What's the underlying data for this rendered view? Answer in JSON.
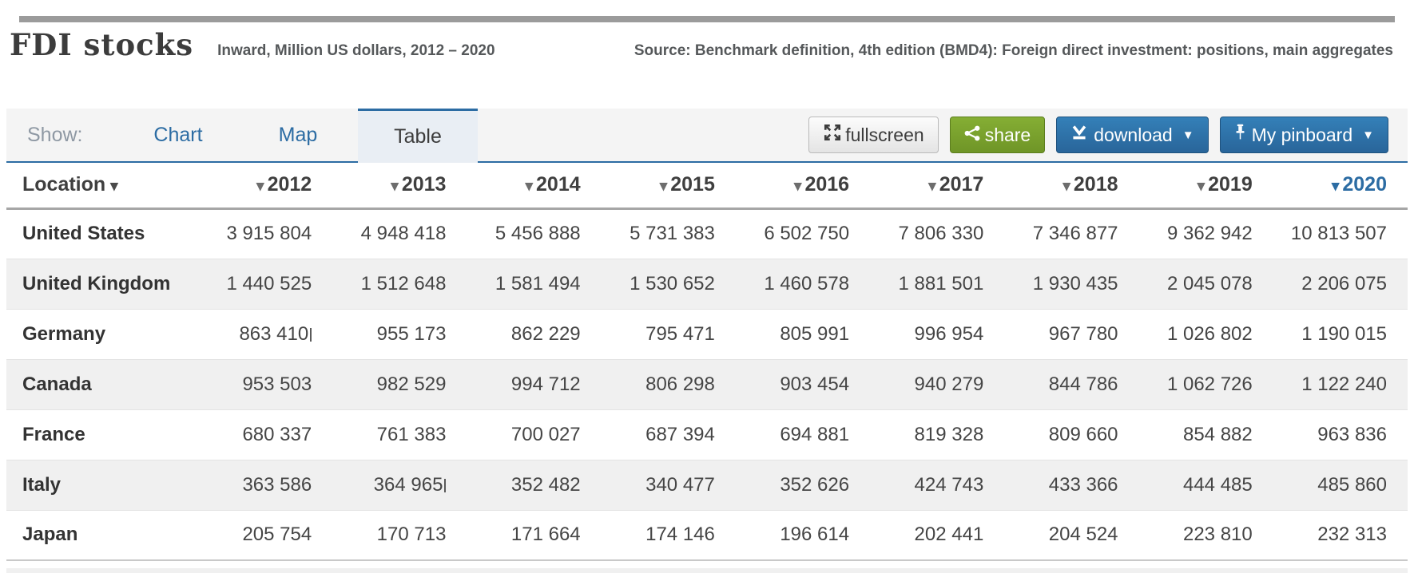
{
  "page": {
    "title": "FDI stocks",
    "subtitle": "Inward, Million US dollars, 2012 – 2020",
    "source": "Source: Benchmark definition, 4th edition (BMD4): Foreign direct investment: positions, main aggregates"
  },
  "controls": {
    "show_label": "Show:",
    "tabs": [
      {
        "id": "chart",
        "label": "Chart",
        "active": false
      },
      {
        "id": "map",
        "label": "Map",
        "active": false
      },
      {
        "id": "table",
        "label": "Table",
        "active": true
      }
    ],
    "buttons": {
      "fullscreen": "fullscreen",
      "share": "share",
      "download": "download",
      "pinboard": "My pinboard",
      "dropdown_arrow": "▼"
    },
    "icons": {
      "fullscreen": "expand-arrows-icon",
      "share": "share-nodes-icon",
      "download": "download-arrow-icon",
      "pinboard": "pushpin-icon"
    }
  },
  "colors": {
    "accent_blue": "#2c6ca3",
    "share_green": "#7aa42c",
    "button_blue": "#2e76ae",
    "row_alt_gray": "#f0f0f0",
    "tabbar_gray": "#f4f4f4"
  },
  "table": {
    "location_header": "Location",
    "sort_arrow": "▾",
    "year_columns": [
      "2012",
      "2013",
      "2014",
      "2015",
      "2016",
      "2017",
      "2018",
      "2019",
      "2020"
    ],
    "highlighted_column": "2020",
    "rows": [
      {
        "location": "United States",
        "values": [
          "3 915 804",
          "4 948 418",
          "5 456 888",
          "5 731 383",
          "6 502 750",
          "7 806 330",
          "7 346 877",
          "9 362 942",
          "10 813 507"
        ],
        "breaks": []
      },
      {
        "location": "United Kingdom",
        "values": [
          "1 440 525",
          "1 512 648",
          "1 581 494",
          "1 530 652",
          "1 460 578",
          "1 881 501",
          "1 930 435",
          "2 045 078",
          "2 206 075"
        ],
        "breaks": []
      },
      {
        "location": "Germany",
        "values": [
          "863 410",
          "955 173",
          "862 229",
          "795 471",
          "805 991",
          "996 954",
          "967 780",
          "1 026 802",
          "1 190 015"
        ],
        "breaks": [
          0
        ]
      },
      {
        "location": "Canada",
        "values": [
          "953 503",
          "982 529",
          "994 712",
          "806 298",
          "903 454",
          "940 279",
          "844 786",
          "1 062 726",
          "1 122 240"
        ],
        "breaks": []
      },
      {
        "location": "France",
        "values": [
          "680 337",
          "761 383",
          "700 027",
          "687 394",
          "694 881",
          "819 328",
          "809 660",
          "854 882",
          "963 836"
        ],
        "breaks": []
      },
      {
        "location": "Italy",
        "values": [
          "363 586",
          "364 965",
          "352 482",
          "340 477",
          "352 626",
          "424 743",
          "433 366",
          "444 485",
          "485 860"
        ],
        "breaks": [
          1
        ]
      },
      {
        "location": "Japan",
        "values": [
          "205 754",
          "170 713",
          "171 664",
          "174 146",
          "196 614",
          "202 441",
          "204 524",
          "223 810",
          "232 313"
        ],
        "breaks": []
      }
    ]
  }
}
